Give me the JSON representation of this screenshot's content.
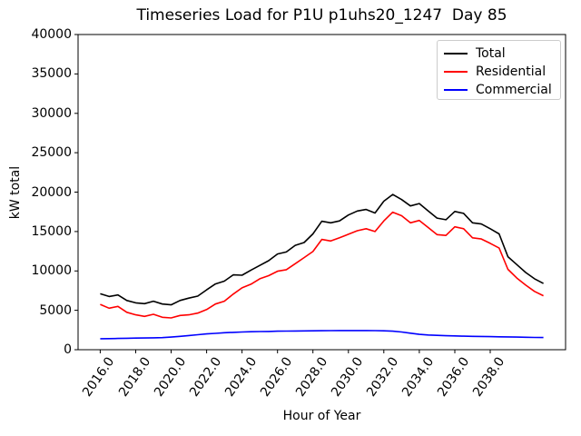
{
  "chart_data": {
    "type": "line",
    "title": "Timeseries Load for P1U p1uhs20_1247  Day 85",
    "xlabel": "Hour of Year",
    "ylabel": "kW total",
    "xlim": [
      2014.75,
      2042.25
    ],
    "ylim": [
      0,
      40000
    ],
    "grid": false,
    "legend_position": "upper right",
    "x_ticks": [
      2016,
      2018,
      2020,
      2022,
      2024,
      2026,
      2028,
      2030,
      2032,
      2034,
      2036,
      2038
    ],
    "x_tick_labels": [
      "2016.0",
      "2018.0",
      "2020.0",
      "2022.0",
      "2024.0",
      "2026.0",
      "2028.0",
      "2030.0",
      "2032.0",
      "2034.0",
      "2036.0",
      "2038.0"
    ],
    "y_ticks": [
      0,
      5000,
      10000,
      15000,
      20000,
      25000,
      30000,
      35000,
      40000
    ],
    "y_tick_labels": [
      "0",
      "5000",
      "10000",
      "15000",
      "20000",
      "25000",
      "30000",
      "35000",
      "40000"
    ],
    "x": [
      2016.0,
      2016.5,
      2017.0,
      2017.5,
      2018.0,
      2018.5,
      2019.0,
      2019.5,
      2020.0,
      2020.5,
      2021.0,
      2021.5,
      2022.0,
      2022.5,
      2023.0,
      2023.5,
      2024.0,
      2024.5,
      2025.0,
      2025.5,
      2026.0,
      2026.5,
      2027.0,
      2027.5,
      2028.0,
      2028.5,
      2029.0,
      2029.5,
      2030.0,
      2030.5,
      2031.0,
      2031.5,
      2032.0,
      2032.5,
      2033.0,
      2033.5,
      2034.0,
      2034.5,
      2035.0,
      2035.5,
      2036.0,
      2036.5,
      2037.0,
      2037.5,
      2038.0,
      2038.5,
      2039.0,
      2039.5,
      2040.0,
      2040.5,
      2041.0
    ],
    "series": [
      {
        "name": "Total",
        "color": "#000000",
        "values": [
          7100,
          6750,
          6950,
          6250,
          5950,
          5850,
          6150,
          5800,
          5700,
          6250,
          6550,
          6800,
          7600,
          8350,
          8700,
          9500,
          9450,
          10100,
          10700,
          11300,
          12150,
          12400,
          13250,
          13600,
          14700,
          16300,
          16100,
          16350,
          17100,
          17600,
          17800,
          17350,
          18850,
          19700,
          19050,
          18250,
          18550,
          17600,
          16700,
          16500,
          17550,
          17300,
          16100,
          15950,
          15350,
          14700,
          11800,
          10800,
          9800,
          9000,
          8400
        ]
      },
      {
        "name": "Residential",
        "color": "#ff0000",
        "values": [
          5750,
          5270,
          5500,
          4750,
          4430,
          4230,
          4500,
          4120,
          4040,
          4350,
          4430,
          4650,
          5100,
          5800,
          6150,
          7050,
          7850,
          8310,
          9000,
          9390,
          9960,
          10150,
          10920,
          11690,
          12460,
          14000,
          13800,
          14200,
          14650,
          15100,
          15350,
          15000,
          16350,
          17450,
          17000,
          16100,
          16400,
          15500,
          14600,
          14500,
          15600,
          15350,
          14200,
          14050,
          13500,
          12900,
          10200,
          9100,
          8200,
          7400,
          6850
        ]
      },
      {
        "name": "Commercial",
        "color": "#0000ff",
        "values": [
          1400,
          1410,
          1430,
          1450,
          1470,
          1490,
          1510,
          1530,
          1600,
          1700,
          1800,
          1900,
          2000,
          2080,
          2150,
          2200,
          2250,
          2280,
          2300,
          2320,
          2350,
          2360,
          2380,
          2390,
          2400,
          2410,
          2420,
          2430,
          2430,
          2430,
          2430,
          2420,
          2400,
          2350,
          2250,
          2100,
          1950,
          1870,
          1820,
          1780,
          1750,
          1720,
          1700,
          1680,
          1660,
          1640,
          1620,
          1600,
          1580,
          1560,
          1550
        ]
      }
    ]
  }
}
